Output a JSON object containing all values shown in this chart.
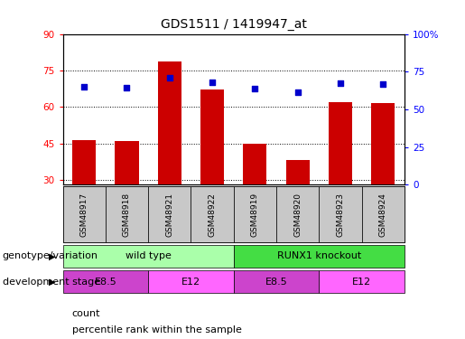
{
  "title": "GDS1511 / 1419947_at",
  "samples": [
    "GSM48917",
    "GSM48918",
    "GSM48921",
    "GSM48922",
    "GSM48919",
    "GSM48920",
    "GSM48923",
    "GSM48924"
  ],
  "counts": [
    46.5,
    46.0,
    78.5,
    67.0,
    45.0,
    38.0,
    62.0,
    61.5
  ],
  "percentiles": [
    65.0,
    64.5,
    71.0,
    68.0,
    63.5,
    61.5,
    67.5,
    67.0
  ],
  "ylim_left": [
    28,
    90
  ],
  "ylim_right": [
    0,
    100
  ],
  "yticks_left": [
    30,
    45,
    60,
    75,
    90
  ],
  "yticks_right": [
    0,
    25,
    50,
    75,
    100
  ],
  "yticklabels_right": [
    "0",
    "25",
    "50",
    "75",
    "100%"
  ],
  "bar_color": "#cc0000",
  "dot_color": "#0000cc",
  "sample_bg": "#c8c8c8",
  "genotype_groups": [
    {
      "label": "wild type",
      "start": 0,
      "end": 4,
      "color": "#aaffaa"
    },
    {
      "label": "RUNX1 knockout",
      "start": 4,
      "end": 8,
      "color": "#44dd44"
    }
  ],
  "stage_groups": [
    {
      "label": "E8.5",
      "start": 0,
      "end": 2,
      "color": "#cc44cc"
    },
    {
      "label": "E12",
      "start": 2,
      "end": 4,
      "color": "#ff66ff"
    },
    {
      "label": "E8.5",
      "start": 4,
      "end": 6,
      "color": "#cc44cc"
    },
    {
      "label": "E12",
      "start": 6,
      "end": 8,
      "color": "#ff66ff"
    }
  ],
  "genotype_label": "genotype/variation",
  "stage_label": "development stage",
  "legend_count": "count",
  "legend_pct": "percentile rank within the sample",
  "title_fontsize": 10,
  "tick_fontsize": 7.5,
  "row_fontsize": 8,
  "sample_fontsize": 6.5,
  "legend_fontsize": 8
}
